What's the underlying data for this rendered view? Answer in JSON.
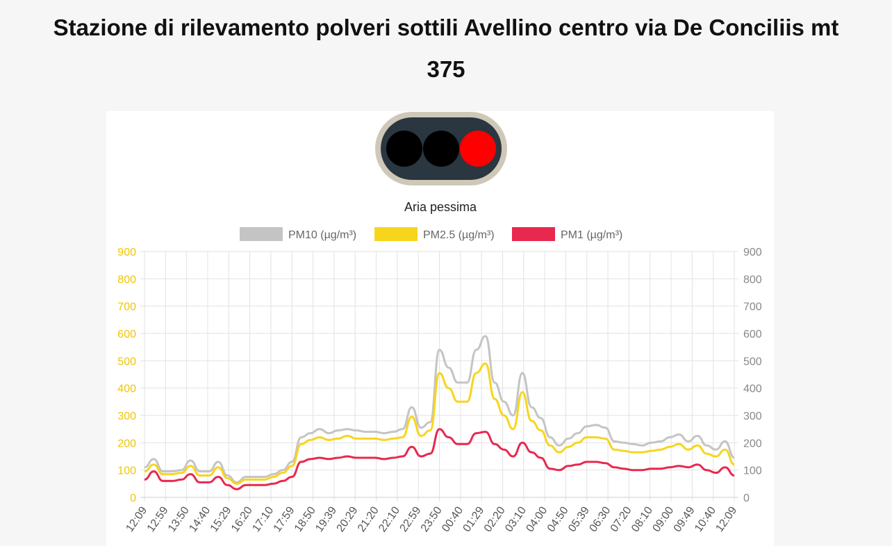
{
  "page": {
    "title_line1": "Stazione di rilevamento polveri sottili Avellino centro via De Conciliis mt",
    "title_line2": "375"
  },
  "status": {
    "label": "Aria pessima",
    "lights": [
      "off",
      "off",
      "on"
    ],
    "colors": {
      "off": "#000000",
      "on": "#ff0000",
      "housing": "#2a3640",
      "rim": "#cfc8b8"
    }
  },
  "chart_data": {
    "type": "line",
    "title": "",
    "xlabel": "",
    "ylabel": "",
    "ylim": [
      0,
      900
    ],
    "y_ticks": [
      0,
      100,
      200,
      300,
      400,
      500,
      600,
      700,
      800,
      900
    ],
    "grid": true,
    "legend": "top-center",
    "x_labels": [
      "12:09",
      "12:59",
      "13:50",
      "14:40",
      "15:29",
      "16:20",
      "17:10",
      "17:59",
      "18:50",
      "19:39",
      "20:29",
      "21:20",
      "22:10",
      "22:59",
      "23:50",
      "00:40",
      "01:29",
      "02:20",
      "03:10",
      "04:00",
      "04:50",
      "05:39",
      "06:30",
      "07:20",
      "08:10",
      "09:00",
      "09:49",
      "10:40",
      "12:09"
    ],
    "series": [
      {
        "name": "PM10 (µg/m³)",
        "color": "#c4c4c4",
        "values": [
          110,
          140,
          95,
          95,
          100,
          135,
          95,
          95,
          130,
          80,
          55,
          75,
          75,
          75,
          85,
          100,
          130,
          220,
          235,
          250,
          235,
          245,
          250,
          245,
          240,
          240,
          235,
          240,
          250,
          330,
          255,
          275,
          540,
          475,
          420,
          420,
          540,
          590,
          420,
          350,
          300,
          455,
          330,
          290,
          220,
          190,
          215,
          235,
          260,
          265,
          255,
          205,
          200,
          195,
          190,
          200,
          205,
          220,
          230,
          205,
          225,
          190,
          175,
          205,
          145
        ]
      },
      {
        "name": "PM2.5 (µg/m³)",
        "color": "#f7d51d",
        "values": [
          95,
          120,
          85,
          85,
          90,
          115,
          80,
          80,
          110,
          70,
          50,
          65,
          65,
          65,
          75,
          90,
          115,
          195,
          210,
          220,
          210,
          215,
          225,
          215,
          215,
          215,
          210,
          215,
          220,
          295,
          225,
          245,
          455,
          400,
          350,
          350,
          455,
          490,
          360,
          300,
          250,
          385,
          280,
          245,
          190,
          165,
          185,
          200,
          220,
          220,
          215,
          175,
          170,
          165,
          165,
          170,
          175,
          185,
          195,
          175,
          190,
          160,
          150,
          175,
          120
        ]
      },
      {
        "name": "PM1 (µg/m³)",
        "color": "#e8284f",
        "values": [
          65,
          95,
          60,
          60,
          65,
          85,
          55,
          55,
          75,
          45,
          30,
          45,
          45,
          45,
          50,
          60,
          75,
          130,
          140,
          145,
          140,
          145,
          150,
          145,
          145,
          145,
          140,
          145,
          150,
          185,
          150,
          160,
          250,
          220,
          195,
          195,
          235,
          240,
          195,
          175,
          150,
          200,
          165,
          145,
          105,
          100,
          115,
          120,
          130,
          130,
          125,
          110,
          105,
          100,
          100,
          105,
          105,
          110,
          115,
          110,
          120,
          100,
          90,
          110,
          80
        ]
      }
    ]
  }
}
